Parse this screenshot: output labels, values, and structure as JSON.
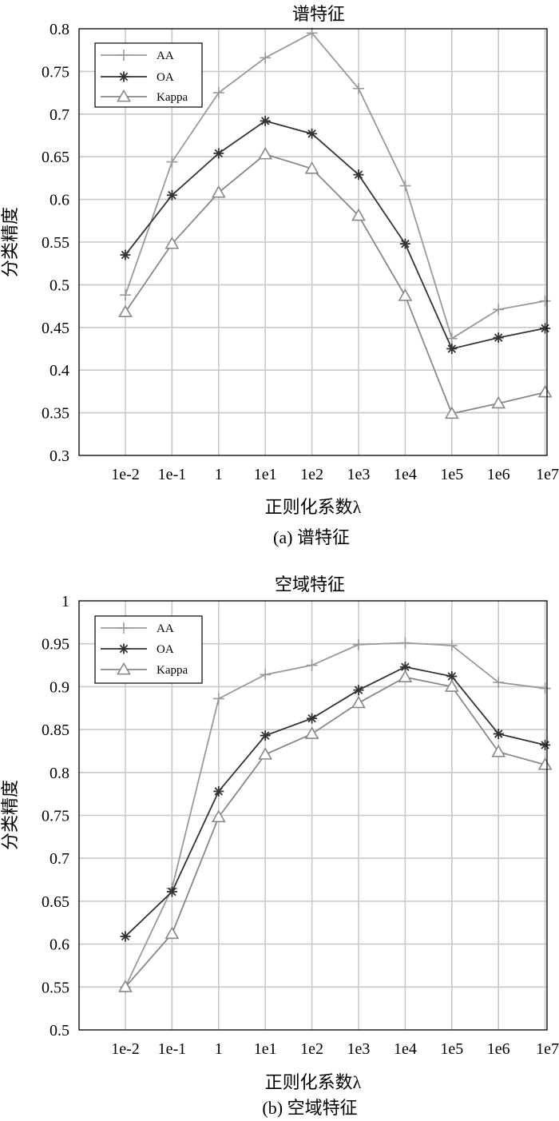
{
  "chart_data": [
    {
      "type": "line",
      "title": "谱特征",
      "caption": "(a) 谱特征",
      "xlabel": "正则化系数λ",
      "ylabel": "分类精度",
      "categories": [
        "1e-2",
        "1e-1",
        "1",
        "1e1",
        "1e2",
        "1e3",
        "1e4",
        "1e5",
        "1e6",
        "1e7"
      ],
      "ylim": [
        0.3,
        0.8
      ],
      "yticks": [
        "0.3",
        "0.35",
        "0.4",
        "0.45",
        "0.5",
        "0.55",
        "0.6",
        "0.65",
        "0.7",
        "0.75",
        "0.8"
      ],
      "grid": true,
      "legend_position": "top-left",
      "series": [
        {
          "name": "AA",
          "marker": "plus",
          "color": "#999999",
          "values": [
            0.488,
            0.644,
            0.725,
            0.766,
            0.795,
            0.73,
            0.616,
            0.437,
            0.471,
            0.481
          ]
        },
        {
          "name": "OA",
          "marker": "star",
          "color": "#333333",
          "values": [
            0.535,
            0.605,
            0.654,
            0.692,
            0.677,
            0.629,
            0.548,
            0.425,
            0.438,
            0.449
          ]
        },
        {
          "name": "Kappa",
          "marker": "triangle",
          "color": "#888888",
          "values": [
            0.468,
            0.548,
            0.608,
            0.653,
            0.636,
            0.581,
            0.487,
            0.349,
            0.361,
            0.374
          ]
        }
      ]
    },
    {
      "type": "line",
      "title": "空域特征",
      "caption": "(b) 空域特征",
      "xlabel": "正则化系数λ",
      "ylabel": "分类精度",
      "categories": [
        "1e-2",
        "1e-1",
        "1",
        "1e1",
        "1e2",
        "1e3",
        "1e4",
        "1e5",
        "1e6",
        "1e7"
      ],
      "ylim": [
        0.5,
        1.0
      ],
      "yticks": [
        "0.5",
        "0.55",
        "0.6",
        "0.65",
        "0.7",
        "0.75",
        "0.8",
        "0.85",
        "0.9",
        "0.95",
        "1"
      ],
      "grid": true,
      "legend_position": "top-left",
      "series": [
        {
          "name": "AA",
          "marker": "plus",
          "color": "#999999",
          "values": [
            0.55,
            0.665,
            0.886,
            0.914,
            0.925,
            0.949,
            0.951,
            0.948,
            0.905,
            0.898
          ]
        },
        {
          "name": "OA",
          "marker": "star",
          "color": "#333333",
          "values": [
            0.609,
            0.661,
            0.778,
            0.843,
            0.863,
            0.896,
            0.923,
            0.912,
            0.845,
            0.832
          ]
        },
        {
          "name": "Kappa",
          "marker": "triangle",
          "color": "#888888",
          "values": [
            0.55,
            0.612,
            0.748,
            0.821,
            0.845,
            0.881,
            0.911,
            0.9,
            0.824,
            0.809
          ]
        }
      ]
    }
  ]
}
